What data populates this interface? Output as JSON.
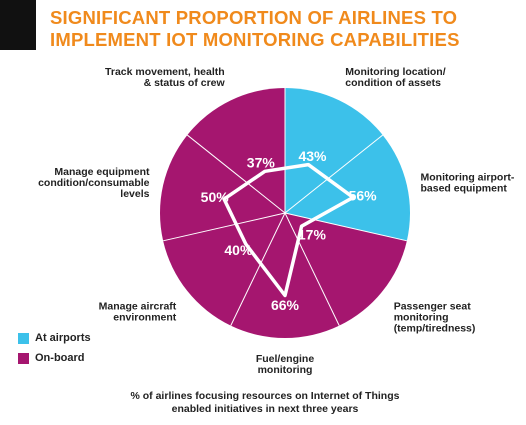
{
  "title": {
    "line1": "SIGNIFICANT PROPORTION OF AIRLINES TO",
    "line2": "IMPLEMENT IOT MONITORING CAPABILITIES"
  },
  "caption": {
    "line1": "% of airlines focusing resources on Internet of Things",
    "line2": "enabled initiatives in next three years"
  },
  "legend": [
    {
      "label": "At airports",
      "color": "#3cc1ea"
    },
    {
      "label": "On-board",
      "color": "#a5166f"
    }
  ],
  "chart_data": {
    "type": "radar",
    "title": "SIGNIFICANT PROPORTION OF AIRLINES TO IMPLEMENT IOT MONITORING CAPABILITIES",
    "categories": [
      {
        "label_lines": [
          "Monitoring location/",
          "condition of assets"
        ],
        "value": 43,
        "label": "43%",
        "group": "At airports"
      },
      {
        "label_lines": [
          "Monitoring airport-",
          "based equipment"
        ],
        "value": 56,
        "label": "56%",
        "group": "At airports"
      },
      {
        "label_lines": [
          "Passenger seat",
          "monitoring",
          "(temp/tiredness)"
        ],
        "value": 17,
        "label": "17%",
        "group": "On-board"
      },
      {
        "label_lines": [
          "Fuel/engine",
          "monitoring"
        ],
        "value": 66,
        "label": "66%",
        "group": "On-board"
      },
      {
        "label_lines": [
          "Manage aircraft",
          "environment"
        ],
        "value": 40,
        "label": "40%",
        "group": "On-board"
      },
      {
        "label_lines": [
          "Manage equipment",
          "condition/consumable",
          "levels"
        ],
        "value": 50,
        "label": "50%",
        "group": "On-board"
      },
      {
        "label_lines": [
          "Track movement, health",
          "& status of crew"
        ],
        "value": 37,
        "label": "37%",
        "group": "On-board"
      }
    ],
    "ylim": [
      0,
      100
    ],
    "colors": {
      "At airports": "#3cc1ea",
      "On-board": "#a5166f"
    }
  }
}
